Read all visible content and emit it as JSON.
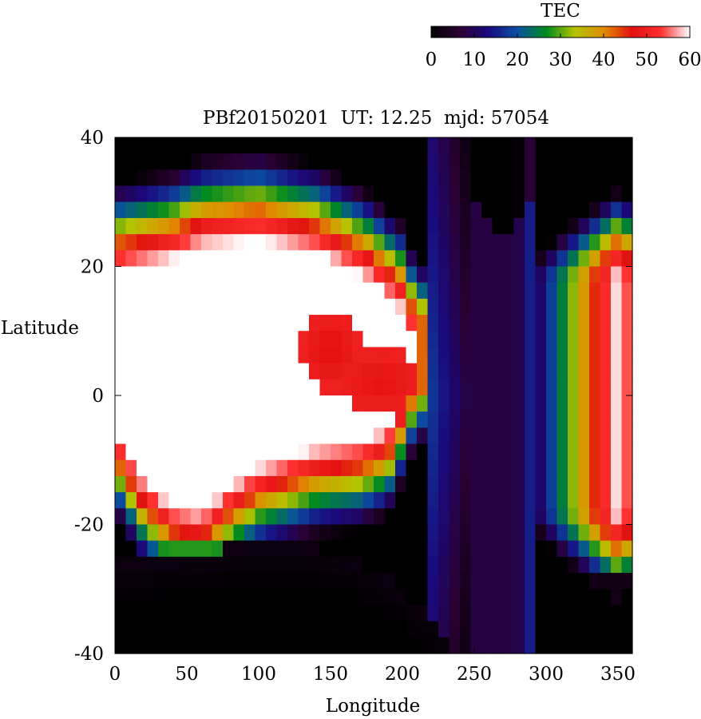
{
  "chart_data": {
    "type": "heatmap",
    "title": "PBf20150201  UT: 12.25  mjd: 57054",
    "xlabel": "Longitude",
    "ylabel": "Latitude",
    "xlim": [
      0,
      360
    ],
    "ylim": [
      -40,
      40
    ],
    "x_ticks": [
      "0",
      "50",
      "100",
      "150",
      "200",
      "250",
      "300",
      "350"
    ],
    "y_ticks": [
      "40",
      "20",
      "0",
      "-20",
      "-40"
    ],
    "grid": false,
    "colorbar": {
      "label": "TEC",
      "min": 0,
      "max": 60,
      "ticks": [
        "0",
        "10",
        "20",
        "30",
        "40",
        "50",
        "60"
      ],
      "placement": "top-right",
      "colors": [
        "#000000",
        "#2a0033",
        "#1a0a80",
        "#0a50a0",
        "#008a20",
        "#b4c400",
        "#e08c00",
        "#e21010",
        "#ff3030",
        "#ffffff"
      ]
    },
    "grid_resolution": {
      "dlon": 7.5,
      "dlat": 2.5
    },
    "lons": [
      0,
      7.5,
      15,
      22.5,
      30,
      37.5,
      45,
      52.5,
      60,
      67.5,
      75,
      82.5,
      90,
      97.5,
      105,
      112.5,
      120,
      127.5,
      135,
      142.5,
      150,
      157.5,
      165,
      172.5,
      180,
      187.5,
      195,
      202.5,
      210,
      217.5,
      225,
      232.5,
      240,
      247.5,
      255,
      262.5,
      270,
      277.5,
      285,
      292.5,
      300,
      307.5,
      315,
      322.5,
      330,
      337.5,
      345,
      352.5
    ],
    "lats": [
      40,
      37.5,
      35,
      32.5,
      30,
      27.5,
      25,
      22.5,
      20,
      17.5,
      15,
      12.5,
      10,
      7.5,
      5,
      2.5,
      0,
      -2.5,
      -5,
      -7.5,
      -10,
      -12.5,
      -15,
      -17.5,
      -20,
      -22.5,
      -25,
      -27.5,
      -30,
      -32.5,
      -35,
      -37.5
    ],
    "features": {
      "bright_region_top_lat_by_lon": [
        [
          0,
          22
        ],
        [
          40,
          24
        ],
        [
          60,
          26
        ],
        [
          100,
          27
        ],
        [
          140,
          25
        ],
        [
          175,
          21
        ],
        [
          200,
          16
        ],
        [
          210,
          10
        ]
      ],
      "bright_region_bottom_lat_by_lon": [
        [
          0,
          -8
        ],
        [
          20,
          -16
        ],
        [
          40,
          -20
        ],
        [
          60,
          -21
        ],
        [
          80,
          -17
        ],
        [
          100,
          -14
        ],
        [
          140,
          -11
        ],
        [
          170,
          -10
        ],
        [
          190,
          -8
        ],
        [
          200,
          -3
        ],
        [
          210,
          3
        ]
      ],
      "dip_center": {
        "lon": 150,
        "lat": 7,
        "tec": 46
      },
      "low_region_south_edge": [
        [
          0,
          -26
        ],
        [
          50,
          -25
        ],
        [
          90,
          -23
        ],
        [
          130,
          -23
        ],
        [
          160,
          -25
        ],
        [
          180,
          -27
        ],
        [
          200,
          -30
        ],
        [
          220,
          -35
        ],
        [
          240,
          -40
        ]
      ],
      "low_region_north_notch": {
        "lon_center": 270,
        "lat_bottom": 25,
        "lon_width": 90
      },
      "east_band_peak": {
        "lon": 350,
        "lat_range": [
          -20,
          20
        ],
        "tec": 60
      }
    }
  }
}
